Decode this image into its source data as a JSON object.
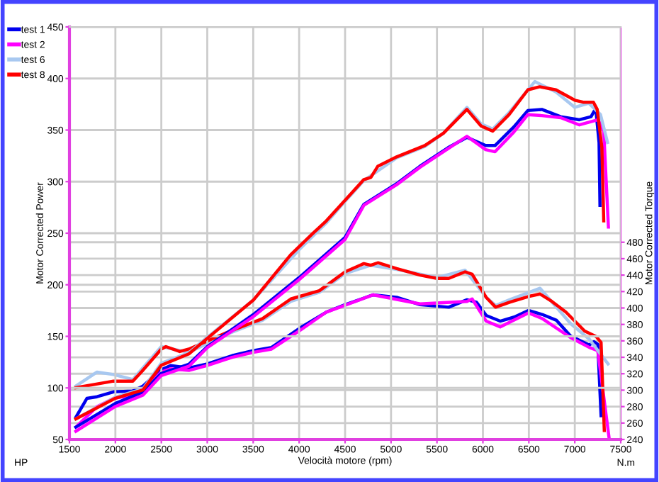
{
  "chart_data": {
    "type": "line",
    "xlabel": "Velocità motore (rpm)",
    "ylabel": "Motor Corrected Power",
    "y2label": "Motor Corrected Torque",
    "annotations": [
      "HP",
      "N.m"
    ],
    "xlim": [
      1500,
      7500
    ],
    "xticks": [
      1500,
      2000,
      2500,
      3000,
      3500,
      4000,
      4500,
      5000,
      5500,
      6000,
      6500,
      7000,
      7500
    ],
    "ylim": [
      50,
      450
    ],
    "yticks": [
      50,
      100,
      150,
      200,
      250,
      300,
      350,
      400,
      450
    ],
    "y2lim": [
      240,
      742
    ],
    "y2ticks": [
      240,
      260,
      280,
      300,
      320,
      340,
      360,
      380,
      400,
      420,
      440,
      460,
      480
    ],
    "grid": true,
    "legend": "top left",
    "line_style": "solid",
    "marker": "none",
    "series": [
      {
        "name": "test 1",
        "color": "#0000ee",
        "x": [
          1570,
          2000,
          2300,
          2500,
          2800,
          3000,
          3500,
          4000,
          4500,
          4704,
          5061,
          5316,
          5622,
          5826,
          6030,
          6132,
          6336,
          6489,
          6642,
          6846,
          7050,
          7177,
          7228,
          7264,
          7274
        ],
        "values": [
          62,
          85,
          96,
          114,
          123,
          140,
          171,
          207,
          246,
          278,
          298,
          315,
          333,
          343,
          335,
          335,
          353,
          369,
          370,
          363,
          360,
          363,
          371,
          338,
          277
        ]
      },
      {
        "name": "test 2",
        "color": "#ff00ff",
        "x": [
          1570,
          2000,
          2300,
          2500,
          2800,
          3000,
          3500,
          4000,
          4500,
          4704,
          5061,
          5316,
          5622,
          5826,
          6030,
          6132,
          6336,
          6489,
          6642,
          6846,
          7050,
          7254,
          7315,
          7366
        ],
        "values": [
          58,
          82,
          93,
          112,
          121,
          139,
          169,
          205,
          244,
          277,
          297,
          314,
          332,
          344,
          331,
          329,
          348,
          365,
          364,
          362,
          355,
          360,
          349,
          256
        ]
      },
      {
        "name": "test 6",
        "color": "#a8c8f0",
        "x": [
          1570,
          2000,
          2300,
          2500,
          2800,
          3000,
          3500,
          4000,
          4296,
          4500,
          4704,
          5061,
          5367,
          5571,
          5826,
          5980,
          6107,
          6285,
          6565,
          6795,
          7000,
          7153,
          7280,
          7356
        ],
        "values": [
          70,
          91,
          99,
          124,
          134,
          149,
          185,
          234,
          260,
          281,
          301,
          323,
          334,
          347,
          372,
          356,
          351,
          367,
          397,
          387,
          372,
          376,
          365,
          338
        ]
      },
      {
        "name": "test 8",
        "color": "#ff0000",
        "x": [
          1570,
          2000,
          2300,
          2500,
          2800,
          3000,
          3500,
          3907,
          4140,
          4296,
          4500,
          4704,
          4780,
          4857,
          5061,
          5367,
          5571,
          5826,
          5980,
          6107,
          6285,
          6489,
          6617,
          6795,
          6999,
          7091,
          7203,
          7244,
          7295,
          7315
        ],
        "values": [
          70,
          90,
          98,
          122,
          133,
          148,
          185,
          229,
          249,
          262,
          282,
          302,
          304,
          315,
          324,
          335,
          347,
          370,
          354,
          349,
          365,
          389,
          392,
          389,
          379,
          377,
          377,
          370,
          333,
          262
        ]
      },
      {
        "axis": "y2",
        "color": "#0000ee",
        "x": [
          1570,
          1690,
          1800,
          1980,
          2190,
          2300,
          2500,
          2600,
          2800,
          3000,
          3270,
          3500,
          3700,
          4000,
          4296,
          4500,
          4806,
          5061,
          5316,
          5628,
          5827,
          5930,
          6035,
          6188,
          6342,
          6495,
          6648,
          6801,
          6954,
          7158,
          7209,
          7250,
          7286
        ],
        "values": [
          267,
          290,
          292,
          298,
          299,
          305,
          325,
          330,
          327,
          332,
          342,
          348,
          352,
          375,
          395,
          404,
          416,
          413,
          404,
          401,
          410,
          407,
          391,
          384,
          389,
          397,
          392,
          385,
          366,
          355,
          359,
          356,
          269
        ]
      },
      {
        "axis": "y2",
        "color": "#ff00ff",
        "x": [
          1570,
          1800,
          1980,
          2190,
          2300,
          2500,
          2600,
          2800,
          3000,
          3270,
          3500,
          3700,
          4000,
          4296,
          4806,
          5316,
          5827,
          5883,
          6035,
          6188,
          6495,
          6648,
          6954,
          7158,
          7250,
          7373
        ],
        "values": [
          255,
          280,
          290,
          294,
          300,
          322,
          326,
          324,
          330,
          340,
          346,
          350,
          372,
          395,
          416,
          405,
          408,
          411,
          384,
          377,
          394,
          387,
          364,
          352,
          348,
          242
        ]
      },
      {
        "axis": "y2",
        "color": "#a8c8f0",
        "x": [
          1570,
          1800,
          1980,
          2190,
          2500,
          2800,
          3210,
          3600,
          3910,
          4220,
          4500,
          4780,
          5061,
          5500,
          5806,
          6035,
          6138,
          6291,
          6622,
          6954,
          7158,
          7362
        ],
        "values": [
          305,
          322,
          319,
          313,
          353,
          346,
          368,
          385,
          408,
          419,
          442,
          452,
          447,
          437,
          446,
          413,
          403,
          410,
          424,
          381,
          362,
          332
        ]
      },
      {
        "axis": "y2",
        "color": "#ff0000",
        "x": [
          1570,
          1980,
          2190,
          2290,
          2500,
          2550,
          2700,
          2800,
          3210,
          3600,
          3910,
          4220,
          4500,
          4704,
          4780,
          4857,
          5061,
          5316,
          5500,
          5628,
          5806,
          5883,
          6035,
          6138,
          6291,
          6495,
          6622,
          6750,
          6903,
          7107,
          7235,
          7286,
          7321
        ],
        "values": [
          303,
          311,
          311,
          323,
          350,
          353,
          347,
          350,
          370,
          387,
          411,
          421,
          444,
          454,
          452,
          455,
          448,
          440,
          436,
          436,
          444,
          441,
          413,
          401,
          407,
          414,
          417,
          408,
          395,
          372,
          365,
          358,
          251
        ]
      }
    ]
  }
}
